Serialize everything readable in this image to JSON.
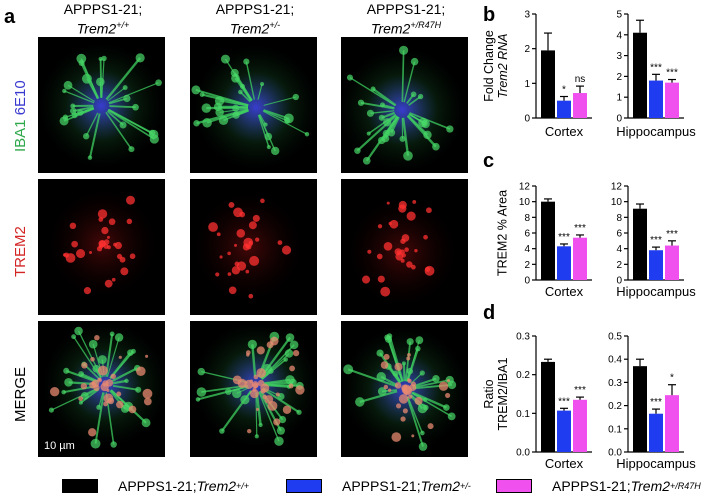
{
  "panels": {
    "a": "a",
    "b": "b",
    "c": "c",
    "d": "d"
  },
  "columns": [
    {
      "line1": "APPPS1-21;",
      "gene": "Trem2",
      "sup": "+/+"
    },
    {
      "line1": "APPPS1-21;",
      "gene": "Trem2",
      "sup": "+/-"
    },
    {
      "line1": "APPPS1-21;",
      "gene": "Trem2",
      "sup": "+/R47H"
    }
  ],
  "rows": {
    "iba1": "IBA1",
    "e10": "6E10",
    "trem2": "TREM2",
    "merge": "MERGE"
  },
  "scale_bar": "10 µm",
  "colors": {
    "wt": "#000000",
    "het": "#1f3cf0",
    "r47h": "#f050ee",
    "iba1": "#2fa84a",
    "e10": "#3a3ad0",
    "trem2": "#d42525"
  },
  "chart_data": [
    {
      "id": "b",
      "type": "bar",
      "ylabel_line1": "Fold Change",
      "ylabel_line2": "Trem2 RNA",
      "groups": [
        {
          "name": "Cortex",
          "ylim": [
            0,
            3
          ],
          "ticks": [
            0,
            1,
            2,
            3
          ],
          "values": [
            1.95,
            0.5,
            0.72
          ],
          "errors": [
            0.5,
            0.12,
            0.2
          ],
          "sig": [
            "",
            "*",
            "ns"
          ]
        },
        {
          "name": "Hippocampus",
          "ylim": [
            0,
            5
          ],
          "ticks": [
            0,
            1,
            2,
            3,
            4,
            5
          ],
          "values": [
            4.1,
            1.8,
            1.7
          ],
          "errors": [
            0.6,
            0.3,
            0.15
          ],
          "sig": [
            "",
            "***",
            "***"
          ]
        }
      ]
    },
    {
      "id": "c",
      "type": "bar",
      "ylabel_line1": "TREM2 % Area",
      "ylabel_line2": "",
      "groups": [
        {
          "name": "Cortex",
          "ylim": [
            0,
            12
          ],
          "ticks": [
            0,
            2,
            4,
            6,
            8,
            10,
            12
          ],
          "values": [
            10.0,
            4.3,
            5.4
          ],
          "errors": [
            0.35,
            0.3,
            0.35
          ],
          "sig": [
            "",
            "***",
            "***"
          ]
        },
        {
          "name": "Hippocampus",
          "ylim": [
            0,
            12
          ],
          "ticks": [
            0,
            2,
            4,
            6,
            8,
            10,
            12
          ],
          "values": [
            9.1,
            3.8,
            4.4
          ],
          "errors": [
            0.6,
            0.4,
            0.6
          ],
          "sig": [
            "",
            "***",
            "***"
          ]
        }
      ]
    },
    {
      "id": "d",
      "type": "bar",
      "ylabel_line1": "Ratio",
      "ylabel_line2": "TREM2/IBA1",
      "groups": [
        {
          "name": "Cortex",
          "ylim": [
            0,
            0.3
          ],
          "ticks": [
            0.0,
            0.1,
            0.2,
            0.3
          ],
          "values": [
            0.233,
            0.107,
            0.135
          ],
          "errors": [
            0.007,
            0.006,
            0.007
          ],
          "sig": [
            "",
            "***",
            "***"
          ]
        },
        {
          "name": "Hippocampus",
          "ylim": [
            0,
            0.5
          ],
          "ticks": [
            0.0,
            0.1,
            0.2,
            0.3,
            0.4,
            0.5
          ],
          "values": [
            0.37,
            0.165,
            0.245
          ],
          "errors": [
            0.03,
            0.02,
            0.045
          ],
          "sig": [
            "",
            "***",
            "*"
          ]
        }
      ]
    }
  ],
  "legend": [
    {
      "text": "APPPS1-21; ",
      "gene": "Trem2",
      "sup": "+/+"
    },
    {
      "text": "APPPS1-21; ",
      "gene": "Trem2",
      "sup": "+/-"
    },
    {
      "text": "APPPS1-21; ",
      "gene": "Trem2",
      "sup": "+/R47H"
    }
  ]
}
